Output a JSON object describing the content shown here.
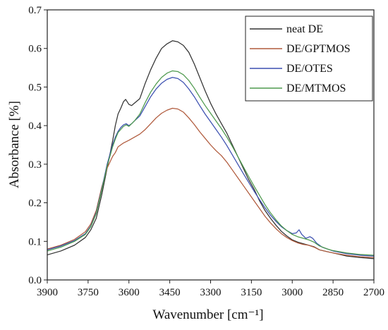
{
  "chart_data": {
    "type": "line",
    "title": "",
    "xlabel": "Wavenumber [cm⁻¹]",
    "ylabel": "Absorbance [%]",
    "xlim": [
      3900,
      2700
    ],
    "ylim": [
      0.0,
      0.7
    ],
    "x_reversed": true,
    "grid": false,
    "legend_position": "top-right",
    "x_ticks": [
      3900,
      3750,
      3600,
      3450,
      3300,
      3150,
      3000,
      2850,
      2700
    ],
    "y_ticks": [
      0.0,
      0.1,
      0.2,
      0.3,
      0.4,
      0.5,
      0.6,
      0.7
    ],
    "x_tick_labels": [
      "3900",
      "3750",
      "3600",
      "3450",
      "3300",
      "3150",
      "3000",
      "2850",
      "2700"
    ],
    "y_tick_labels": [
      "0.0",
      "0.1",
      "0.2",
      "0.3",
      "0.4",
      "0.5",
      "0.6",
      "0.7"
    ],
    "series": [
      {
        "name": "neat DE",
        "color": "#333333",
        "points": [
          [
            3900,
            0.065
          ],
          [
            3850,
            0.075
          ],
          [
            3800,
            0.09
          ],
          [
            3760,
            0.11
          ],
          [
            3740,
            0.13
          ],
          [
            3720,
            0.16
          ],
          [
            3700,
            0.22
          ],
          [
            3680,
            0.29
          ],
          [
            3660,
            0.36
          ],
          [
            3650,
            0.4
          ],
          [
            3640,
            0.43
          ],
          [
            3630,
            0.445
          ],
          [
            3620,
            0.462
          ],
          [
            3612,
            0.468
          ],
          [
            3600,
            0.455
          ],
          [
            3590,
            0.452
          ],
          [
            3580,
            0.458
          ],
          [
            3560,
            0.47
          ],
          [
            3540,
            0.51
          ],
          [
            3520,
            0.545
          ],
          [
            3500,
            0.575
          ],
          [
            3480,
            0.6
          ],
          [
            3460,
            0.612
          ],
          [
            3440,
            0.62
          ],
          [
            3420,
            0.617
          ],
          [
            3400,
            0.608
          ],
          [
            3380,
            0.59
          ],
          [
            3360,
            0.56
          ],
          [
            3340,
            0.525
          ],
          [
            3320,
            0.49
          ],
          [
            3300,
            0.458
          ],
          [
            3280,
            0.43
          ],
          [
            3260,
            0.405
          ],
          [
            3240,
            0.38
          ],
          [
            3220,
            0.35
          ],
          [
            3200,
            0.32
          ],
          [
            3180,
            0.29
          ],
          [
            3160,
            0.26
          ],
          [
            3140,
            0.235
          ],
          [
            3120,
            0.205
          ],
          [
            3100,
            0.18
          ],
          [
            3080,
            0.16
          ],
          [
            3060,
            0.142
          ],
          [
            3040,
            0.126
          ],
          [
            3020,
            0.114
          ],
          [
            3000,
            0.104
          ],
          [
            2980,
            0.098
          ],
          [
            2960,
            0.094
          ],
          [
            2940,
            0.09
          ],
          [
            2920,
            0.086
          ],
          [
            2900,
            0.078
          ],
          [
            2870,
            0.073
          ],
          [
            2850,
            0.07
          ],
          [
            2800,
            0.062
          ],
          [
            2750,
            0.058
          ],
          [
            2700,
            0.055
          ]
        ]
      },
      {
        "name": "DE/GPTMOS",
        "color": "#b05a3c",
        "points": [
          [
            3900,
            0.08
          ],
          [
            3850,
            0.09
          ],
          [
            3800,
            0.105
          ],
          [
            3760,
            0.125
          ],
          [
            3740,
            0.145
          ],
          [
            3720,
            0.18
          ],
          [
            3700,
            0.24
          ],
          [
            3680,
            0.29
          ],
          [
            3660,
            0.32
          ],
          [
            3650,
            0.33
          ],
          [
            3640,
            0.345
          ],
          [
            3620,
            0.355
          ],
          [
            3600,
            0.362
          ],
          [
            3580,
            0.37
          ],
          [
            3560,
            0.378
          ],
          [
            3540,
            0.39
          ],
          [
            3520,
            0.405
          ],
          [
            3500,
            0.42
          ],
          [
            3480,
            0.432
          ],
          [
            3460,
            0.44
          ],
          [
            3440,
            0.445
          ],
          [
            3420,
            0.443
          ],
          [
            3400,
            0.435
          ],
          [
            3380,
            0.42
          ],
          [
            3360,
            0.403
          ],
          [
            3340,
            0.384
          ],
          [
            3320,
            0.367
          ],
          [
            3300,
            0.35
          ],
          [
            3280,
            0.335
          ],
          [
            3260,
            0.322
          ],
          [
            3240,
            0.305
          ],
          [
            3220,
            0.285
          ],
          [
            3200,
            0.265
          ],
          [
            3180,
            0.245
          ],
          [
            3160,
            0.225
          ],
          [
            3140,
            0.205
          ],
          [
            3120,
            0.185
          ],
          [
            3100,
            0.165
          ],
          [
            3080,
            0.148
          ],
          [
            3060,
            0.133
          ],
          [
            3040,
            0.12
          ],
          [
            3020,
            0.11
          ],
          [
            3000,
            0.102
          ],
          [
            2980,
            0.096
          ],
          [
            2960,
            0.092
          ],
          [
            2940,
            0.09
          ],
          [
            2920,
            0.085
          ],
          [
            2900,
            0.078
          ],
          [
            2870,
            0.073
          ],
          [
            2850,
            0.07
          ],
          [
            2800,
            0.064
          ],
          [
            2750,
            0.06
          ],
          [
            2700,
            0.058
          ]
        ]
      },
      {
        "name": "DE/OTES",
        "color": "#3b4fb0",
        "points": [
          [
            3900,
            0.078
          ],
          [
            3850,
            0.088
          ],
          [
            3800,
            0.102
          ],
          [
            3760,
            0.12
          ],
          [
            3740,
            0.14
          ],
          [
            3720,
            0.175
          ],
          [
            3700,
            0.235
          ],
          [
            3680,
            0.3
          ],
          [
            3660,
            0.35
          ],
          [
            3650,
            0.37
          ],
          [
            3640,
            0.385
          ],
          [
            3630,
            0.395
          ],
          [
            3620,
            0.402
          ],
          [
            3610,
            0.405
          ],
          [
            3600,
            0.4
          ],
          [
            3590,
            0.405
          ],
          [
            3580,
            0.412
          ],
          [
            3560,
            0.425
          ],
          [
            3540,
            0.45
          ],
          [
            3520,
            0.475
          ],
          [
            3500,
            0.495
          ],
          [
            3480,
            0.51
          ],
          [
            3460,
            0.52
          ],
          [
            3440,
            0.525
          ],
          [
            3420,
            0.522
          ],
          [
            3400,
            0.512
          ],
          [
            3380,
            0.495
          ],
          [
            3360,
            0.475
          ],
          [
            3340,
            0.452
          ],
          [
            3320,
            0.43
          ],
          [
            3300,
            0.41
          ],
          [
            3280,
            0.39
          ],
          [
            3260,
            0.37
          ],
          [
            3240,
            0.348
          ],
          [
            3220,
            0.324
          ],
          [
            3200,
            0.3
          ],
          [
            3180,
            0.276
          ],
          [
            3160,
            0.253
          ],
          [
            3140,
            0.23
          ],
          [
            3120,
            0.208
          ],
          [
            3100,
            0.187
          ],
          [
            3080,
            0.168
          ],
          [
            3060,
            0.152
          ],
          [
            3040,
            0.138
          ],
          [
            3020,
            0.128
          ],
          [
            3000,
            0.12
          ],
          [
            2985,
            0.122
          ],
          [
            2975,
            0.13
          ],
          [
            2965,
            0.118
          ],
          [
            2950,
            0.108
          ],
          [
            2935,
            0.112
          ],
          [
            2925,
            0.108
          ],
          [
            2910,
            0.095
          ],
          [
            2890,
            0.085
          ],
          [
            2870,
            0.08
          ],
          [
            2850,
            0.075
          ],
          [
            2800,
            0.068
          ],
          [
            2750,
            0.064
          ],
          [
            2700,
            0.062
          ]
        ]
      },
      {
        "name": "DE/MTMOS",
        "color": "#4e9a4e",
        "points": [
          [
            3900,
            0.075
          ],
          [
            3850,
            0.085
          ],
          [
            3800,
            0.1
          ],
          [
            3760,
            0.118
          ],
          [
            3740,
            0.138
          ],
          [
            3720,
            0.172
          ],
          [
            3700,
            0.232
          ],
          [
            3680,
            0.295
          ],
          [
            3660,
            0.345
          ],
          [
            3650,
            0.365
          ],
          [
            3640,
            0.382
          ],
          [
            3630,
            0.39
          ],
          [
            3620,
            0.398
          ],
          [
            3610,
            0.402
          ],
          [
            3600,
            0.398
          ],
          [
            3590,
            0.405
          ],
          [
            3580,
            0.412
          ],
          [
            3560,
            0.43
          ],
          [
            3540,
            0.46
          ],
          [
            3520,
            0.487
          ],
          [
            3500,
            0.508
          ],
          [
            3480,
            0.525
          ],
          [
            3460,
            0.536
          ],
          [
            3440,
            0.542
          ],
          [
            3420,
            0.54
          ],
          [
            3400,
            0.532
          ],
          [
            3380,
            0.517
          ],
          [
            3360,
            0.497
          ],
          [
            3340,
            0.474
          ],
          [
            3320,
            0.452
          ],
          [
            3300,
            0.432
          ],
          [
            3280,
            0.412
          ],
          [
            3260,
            0.392
          ],
          [
            3240,
            0.37
          ],
          [
            3220,
            0.346
          ],
          [
            3200,
            0.32
          ],
          [
            3180,
            0.294
          ],
          [
            3160,
            0.268
          ],
          [
            3140,
            0.243
          ],
          [
            3120,
            0.219
          ],
          [
            3100,
            0.195
          ],
          [
            3080,
            0.174
          ],
          [
            3060,
            0.156
          ],
          [
            3040,
            0.14
          ],
          [
            3020,
            0.128
          ],
          [
            3000,
            0.118
          ],
          [
            2980,
            0.112
          ],
          [
            2960,
            0.108
          ],
          [
            2940,
            0.104
          ],
          [
            2920,
            0.098
          ],
          [
            2900,
            0.088
          ],
          [
            2870,
            0.08
          ],
          [
            2850,
            0.076
          ],
          [
            2800,
            0.07
          ],
          [
            2750,
            0.066
          ],
          [
            2700,
            0.064
          ]
        ]
      }
    ]
  }
}
